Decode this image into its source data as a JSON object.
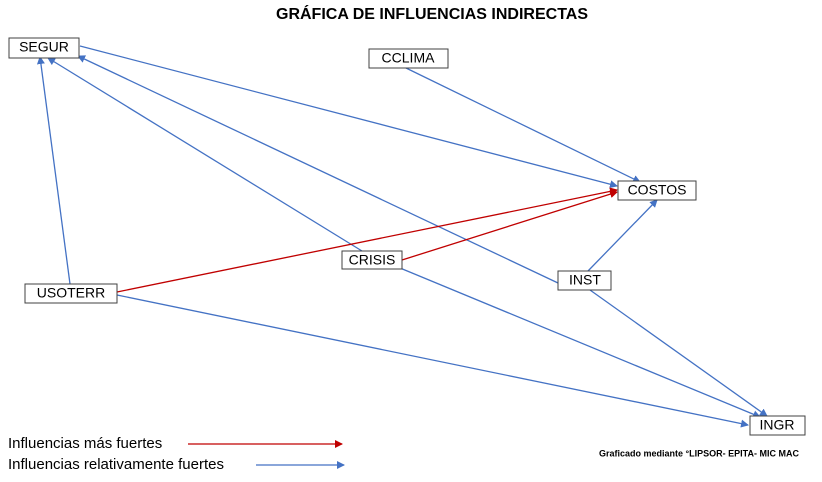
{
  "header": {
    "title": "GRÁFICA DE INFLUENCIAS INDIRECTAS"
  },
  "nodes": [
    {
      "label": "SEGUR"
    },
    {
      "label": "CCLIMA"
    },
    {
      "label": "COSTOS"
    },
    {
      "label": "CRISIS"
    },
    {
      "label": "INST"
    },
    {
      "label": "USOTERR"
    },
    {
      "label": "INGR"
    }
  ],
  "legend": [
    {
      "label": "Influencias más fuertes"
    },
    {
      "label": "Influencias relativamente fuertes"
    }
  ],
  "footer": {
    "credit": "Graficado mediante °LIPSOR- EPITA- MIC MAC"
  }
}
